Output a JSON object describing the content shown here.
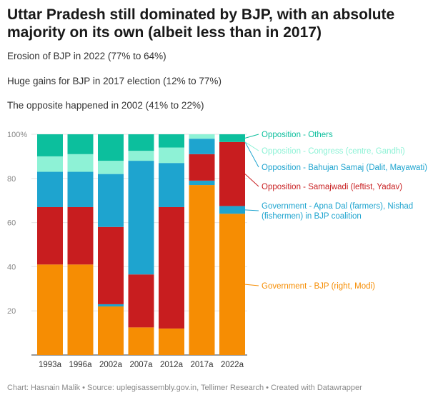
{
  "title": "Uttar Pradesh still dominated by BJP, with an absolute majority on its own (albeit less than in 2017)",
  "notes": [
    "Erosion of BJP in 2022 (77% to 64%)",
    "Huge gains for BJP in 2017 election (12% to 77%)",
    "The opposite happened in 2002 (41% to 22%)"
  ],
  "footer": "Chart: Hasnain Malik • Source: uplegisassembly.gov.in, Tellimer Research • Created with Datawrapper",
  "chart_data": {
    "type": "bar",
    "stacked": true,
    "categories": [
      "1993a",
      "1996a",
      "2002a",
      "2007a",
      "2012a",
      "2017a",
      "2022a"
    ],
    "y_ticks": [
      "100%",
      "80",
      "60",
      "40",
      "20"
    ],
    "y_tick_values": [
      100,
      80,
      60,
      40,
      20
    ],
    "ylim": [
      0,
      100
    ],
    "grid": true,
    "legend_position": "right",
    "series": [
      {
        "name": "Government - BJP (right, Modi)",
        "color": "#f68d03",
        "values": [
          41,
          41,
          22,
          12.5,
          12,
          77,
          64
        ]
      },
      {
        "name": "Government - Apna Dal (farmers), Nishad (fishermen) in BJP coalition",
        "color": "#1ea4cf",
        "values": [
          0,
          0,
          1,
          0,
          0,
          2,
          3.5
        ]
      },
      {
        "name": "Opposition - Samajwadi (leftist, Yadav)",
        "color": "#c81d1f",
        "values": [
          26,
          26,
          35,
          24,
          55,
          12,
          29
        ]
      },
      {
        "name": "Opposition - Bahujan Samaj (Dalit, Mayawati)",
        "color": "#1ea4cf",
        "values": [
          16,
          16,
          24,
          51.5,
          20,
          7,
          0
        ]
      },
      {
        "name": "Opposition - Congress (centre, Gandhi)",
        "color": "#8ef2d6",
        "values": [
          7,
          8,
          6,
          4.5,
          7,
          2,
          0
        ]
      },
      {
        "name": "Opposition - Others",
        "color": "#0cbf9d",
        "values": [
          10,
          9,
          12,
          7.5,
          6,
          0,
          3.5
        ]
      }
    ],
    "legend_label_colors": [
      "#f68d03",
      "#1ea4cf",
      "#c81d1f",
      "#1ea4cf",
      "#8ef2d6",
      "#0cbf9d"
    ]
  }
}
